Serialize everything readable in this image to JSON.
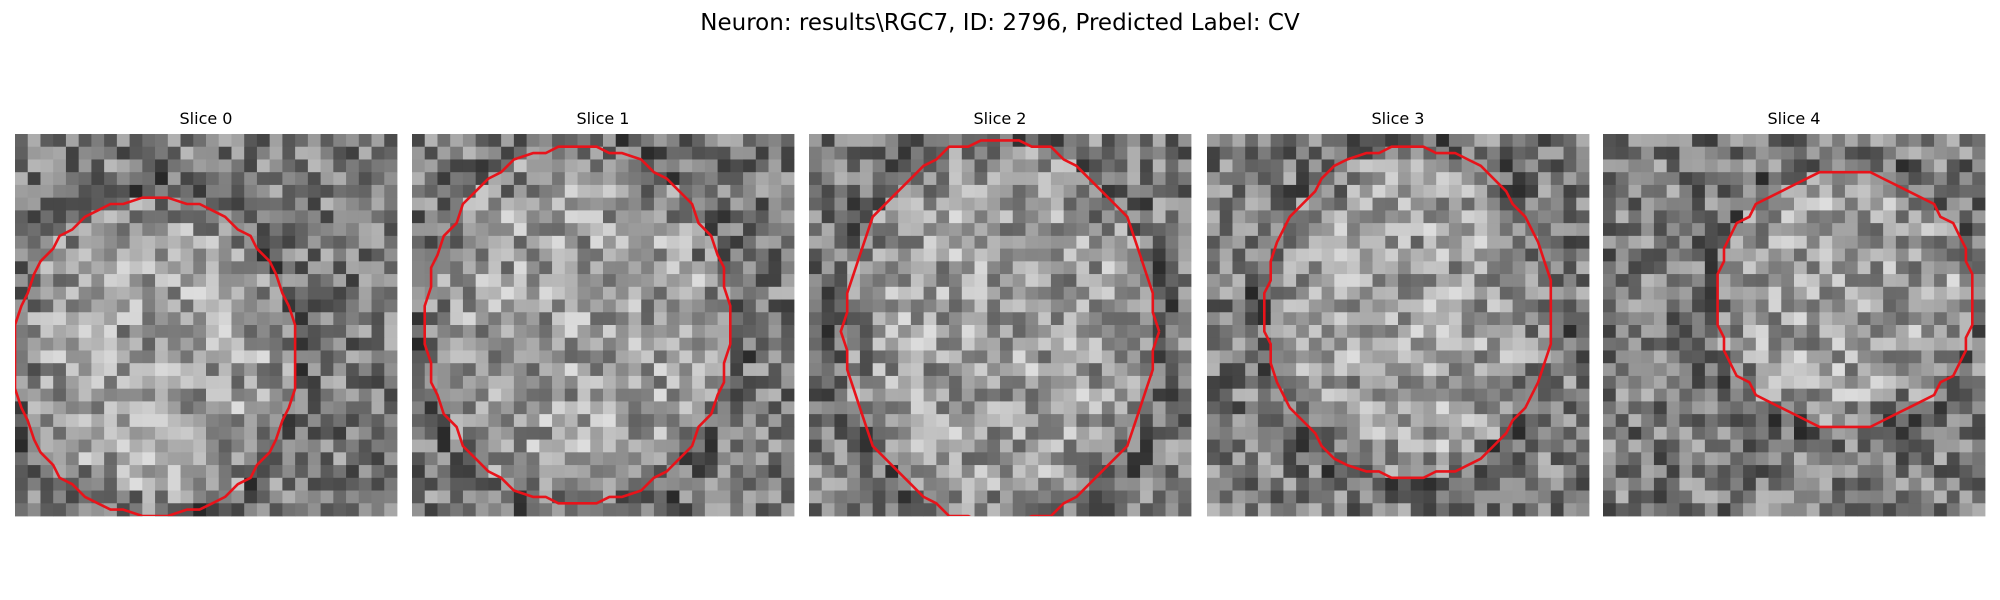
{
  "title": "Neuron: results\\RGC7, ID: 2796, Predicted Label: CV",
  "panels": [
    {
      "title": "Slice 0"
    },
    {
      "title": "Slice 1"
    },
    {
      "title": "Slice 2"
    },
    {
      "title": "Slice 3"
    },
    {
      "title": "Slice 4"
    }
  ]
}
